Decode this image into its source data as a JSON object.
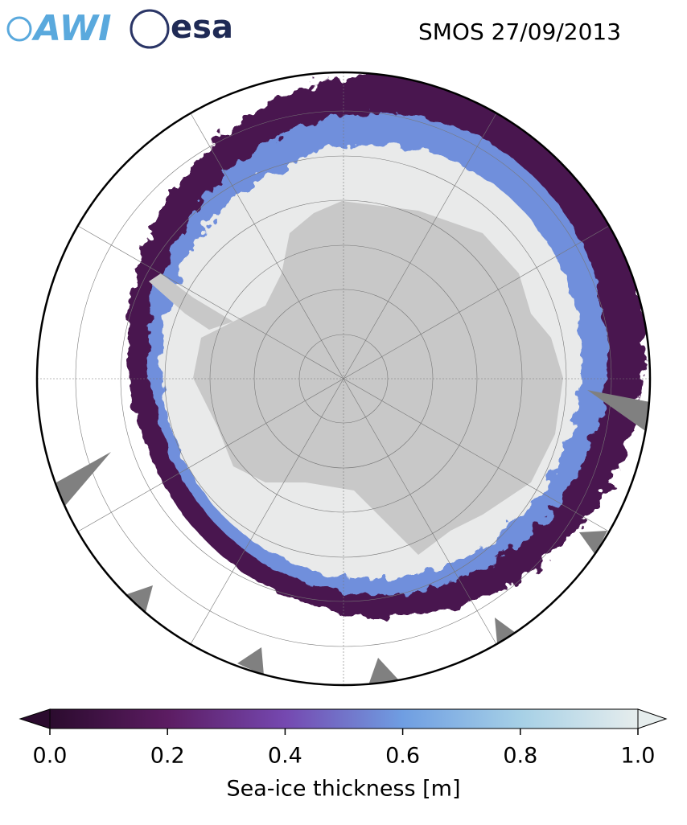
{
  "header": {
    "logos": [
      "AWI",
      "esa"
    ],
    "title": "SMOS 27/09/2013"
  },
  "colorbar": {
    "label": "Sea-ice thickness [m]",
    "range": [
      0,
      1
    ],
    "colors": [
      "#2b0b2e",
      "#5c1c62",
      "#7548b0",
      "#6f9ee2",
      "#a6d0e6",
      "#e6eded"
    ],
    "ticks": [
      {
        "value": 0,
        "label": "0.0"
      },
      {
        "value": 0.2,
        "label": "0.2"
      },
      {
        "value": 0.4,
        "label": "0.4"
      },
      {
        "value": 0.6,
        "label": "0.6"
      },
      {
        "value": 0.8,
        "label": "0.8"
      },
      {
        "value": 1,
        "label": "1.0"
      }
    ]
  }
}
